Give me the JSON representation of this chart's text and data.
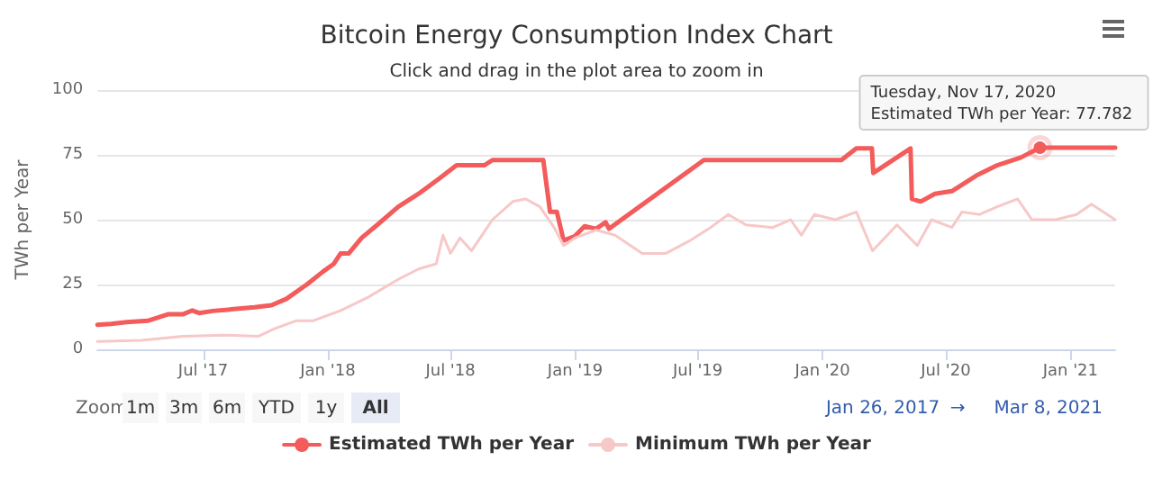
{
  "chart_data": {
    "type": "line",
    "title": "Bitcoin Energy Consumption Index Chart",
    "subtitle": "Click and drag in the plot area to zoom in",
    "ylabel": "TWh per Year",
    "xlim": [
      "2017-01-26",
      "2021-03-08"
    ],
    "xticks": [
      {
        "value": "2017-07-01",
        "label": "Jul '17"
      },
      {
        "value": "2018-01-01",
        "label": "Jan '18"
      },
      {
        "value": "2018-07-01",
        "label": "Jul '18"
      },
      {
        "value": "2019-01-01",
        "label": "Jan '19"
      },
      {
        "value": "2019-07-01",
        "label": "Jul '19"
      },
      {
        "value": "2020-01-01",
        "label": "Jan '20"
      },
      {
        "value": "2020-07-01",
        "label": "Jul '20"
      },
      {
        "value": "2021-01-01",
        "label": "Jan '21"
      }
    ],
    "ylim": [
      0,
      100
    ],
    "yticks": [
      0,
      25,
      50,
      75,
      100
    ],
    "grid": "y",
    "legend": "bottom",
    "marker": "none",
    "line_style": "solid",
    "series": [
      {
        "name": "Estimated TWh per Year",
        "color": "#f45b5b",
        "x": [
          "2017-01-26",
          "2017-02-15",
          "2017-03-10",
          "2017-04-10",
          "2017-05-10",
          "2017-06-01",
          "2017-06-15",
          "2017-06-25",
          "2017-07-15",
          "2017-08-15",
          "2017-09-15",
          "2017-10-10",
          "2017-11-01",
          "2017-12-01",
          "2017-12-25",
          "2018-01-10",
          "2018-01-20",
          "2018-02-01",
          "2018-02-20",
          "2018-03-15",
          "2018-04-15",
          "2018-05-15",
          "2018-06-15",
          "2018-07-10",
          "2018-08-20",
          "2018-09-01",
          "2018-11-15",
          "2018-11-20",
          "2018-11-25",
          "2018-12-05",
          "2018-12-15",
          "2018-12-31",
          "2019-01-15",
          "2019-02-01",
          "2019-02-15",
          "2019-02-20",
          "2019-07-10",
          "2020-01-29",
          "2020-02-20",
          "2020-03-14",
          "2020-03-16",
          "2020-05-10",
          "2020-05-12",
          "2020-05-25",
          "2020-06-15",
          "2020-07-10",
          "2020-08-15",
          "2020-09-15",
          "2020-10-20",
          "2020-11-17",
          "2021-03-08"
        ],
        "values": [
          9.5,
          9.8,
          10.5,
          11,
          13.5,
          13.5,
          15,
          14,
          14.8,
          15.5,
          16.2,
          17,
          19.5,
          25,
          30,
          33,
          37,
          37,
          43,
          48,
          55,
          60,
          66,
          71,
          71,
          73,
          73,
          63,
          53,
          53,
          42,
          43.5,
          47.5,
          46.5,
          49,
          46.5,
          73,
          73,
          77.5,
          77.5,
          68,
          77.5,
          58,
          57,
          60,
          61,
          67,
          71,
          74,
          77.782,
          77.782
        ]
      },
      {
        "name": "Minimum TWh per Year",
        "color": "#f7c8c8",
        "x": [
          "2017-01-26",
          "2017-04-01",
          "2017-06-01",
          "2017-08-01",
          "2017-09-20",
          "2017-10-15",
          "2017-11-15",
          "2017-12-10",
          "2018-01-20",
          "2018-03-01",
          "2018-04-15",
          "2018-05-15",
          "2018-06-10",
          "2018-06-20",
          "2018-07-01",
          "2018-07-15",
          "2018-08-01",
          "2018-09-01",
          "2018-10-01",
          "2018-10-20",
          "2018-11-10",
          "2018-12-01",
          "2018-12-15",
          "2019-01-01",
          "2019-02-01",
          "2019-03-01",
          "2019-04-10",
          "2019-05-15",
          "2019-06-20",
          "2019-07-20",
          "2019-08-15",
          "2019-09-10",
          "2019-10-20",
          "2019-11-15",
          "2019-12-01",
          "2019-12-20",
          "2020-01-20",
          "2020-02-20",
          "2020-03-15",
          "2020-04-20",
          "2020-05-20",
          "2020-06-10",
          "2020-07-10",
          "2020-07-25",
          "2020-08-20",
          "2020-09-15",
          "2020-10-15",
          "2020-11-05",
          "2020-12-10",
          "2021-01-10",
          "2021-02-01",
          "2021-03-08"
        ],
        "values": [
          3,
          3.5,
          5,
          5.5,
          5,
          8,
          11,
          11,
          15,
          20,
          27,
          31,
          33,
          44,
          37,
          43,
          38,
          50,
          57,
          58,
          55,
          47,
          40,
          43,
          46,
          44,
          37,
          37,
          42,
          47,
          52,
          48,
          47,
          50,
          44,
          52,
          50,
          53,
          38,
          48,
          40,
          50,
          47,
          53,
          52,
          55,
          58,
          50,
          50,
          52,
          56,
          50
        ]
      }
    ],
    "annotations": [
      {
        "text": "Tuesday, Nov 17, 2020\nEstimated TWh per Year: 77.782",
        "x": "2020-11-17",
        "y": 77.782
      },
      "Zoom",
      "1m",
      "3m",
      "6m",
      "YTD",
      "1y",
      "All",
      "Jan 26, 2017",
      "→",
      "Mar 8, 2021"
    ]
  }
}
